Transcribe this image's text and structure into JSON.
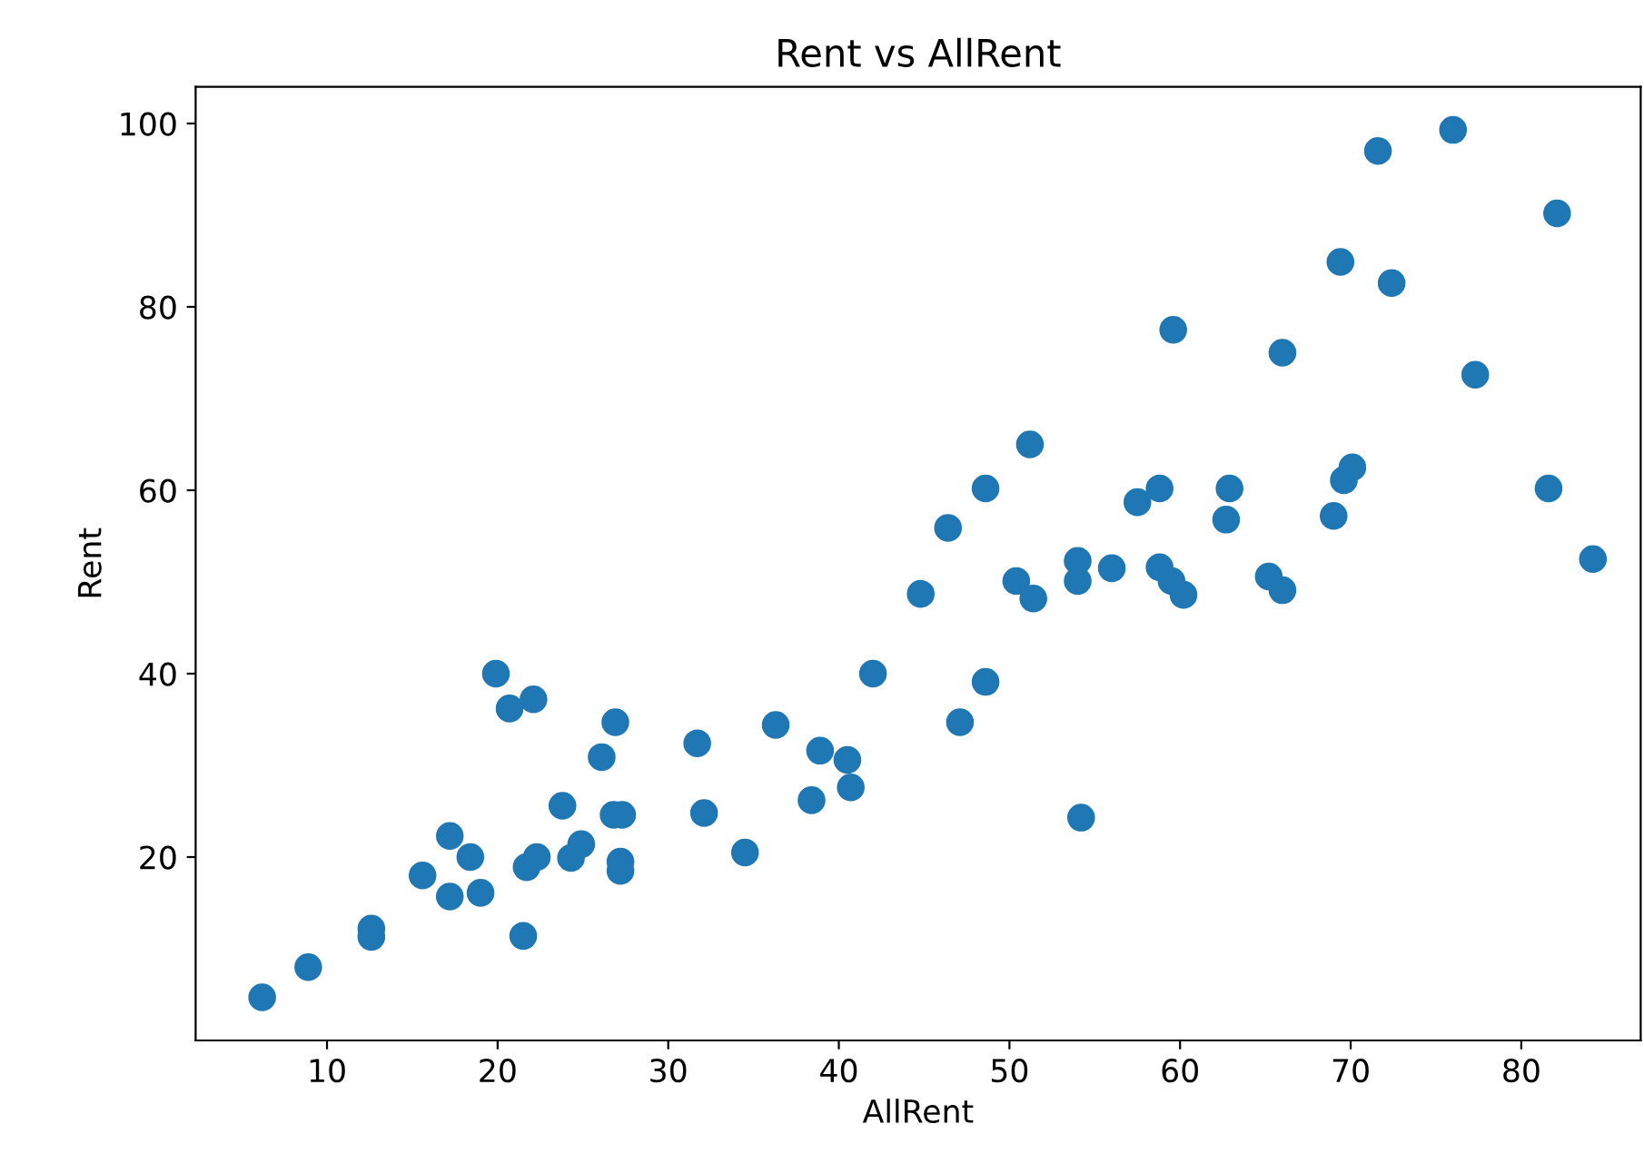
{
  "chart_data": {
    "type": "scatter",
    "title": "Rent vs AllRent",
    "xlabel": "AllRent",
    "ylabel": "Rent",
    "series": [
      {
        "color": "#1f77b4",
        "x": [
          6.2,
          8.9,
          12.6,
          12.6,
          15.6,
          17.2,
          17.2,
          18.4,
          19.0,
          19.9,
          20.7,
          22.1,
          21.5,
          21.7,
          22.3,
          23.8,
          24.3,
          24.9,
          26.1,
          26.9,
          26.8,
          27.3,
          27.2,
          27.2,
          31.7,
          32.1,
          34.5,
          36.3,
          38.4,
          38.9,
          40.5,
          40.7,
          42.0,
          44.8,
          46.4,
          48.6,
          51.2,
          47.1,
          48.6,
          50.4,
          51.4,
          54.0,
          54.0,
          54.2,
          56.0,
          57.5,
          58.8,
          58.8,
          59.5,
          60.2,
          62.7,
          62.9,
          65.2,
          66.0,
          69.0,
          69.6,
          70.1,
          81.6,
          84.2,
          77.3,
          59.6,
          66.0,
          69.4,
          71.6,
          72.4,
          76.0,
          82.1
        ],
        "values": [
          4.7,
          8.0,
          12.2,
          11.3,
          18.0,
          22.3,
          15.7,
          20.0,
          16.1,
          40.0,
          36.2,
          37.2,
          11.4,
          18.9,
          20.0,
          25.6,
          19.9,
          21.4,
          30.9,
          34.7,
          24.6,
          24.6,
          19.5,
          18.5,
          32.4,
          24.8,
          20.5,
          34.4,
          26.2,
          31.6,
          30.6,
          27.6,
          40.0,
          48.7,
          55.9,
          60.2,
          65.0,
          34.7,
          39.1,
          50.1,
          48.2,
          52.3,
          50.1,
          24.3,
          51.5,
          58.7,
          60.2,
          51.6,
          50.1,
          48.6,
          56.8,
          60.2,
          50.6,
          49.1,
          57.2,
          61.1,
          62.5,
          60.2,
          52.5,
          72.6,
          77.5,
          75.0,
          84.9,
          97.0,
          82.6,
          99.3,
          90.2
        ]
      }
    ],
    "xlim": [
      2.3,
      87
    ],
    "ylim": [
      0,
      104
    ],
    "xticks": [
      10,
      20,
      30,
      40,
      50,
      60,
      70,
      80
    ],
    "yticks": [
      20,
      40,
      60,
      80,
      100
    ],
    "marker": "circle",
    "grid": false
  }
}
